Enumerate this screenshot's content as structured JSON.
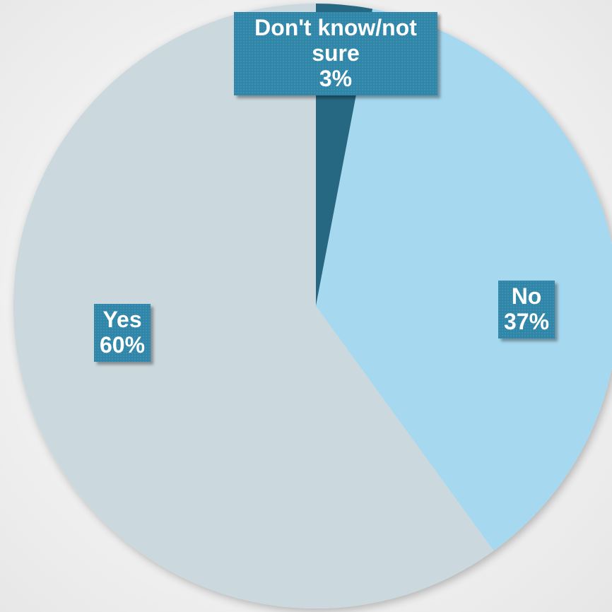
{
  "chart_data": {
    "type": "pie",
    "slices": [
      {
        "label": "Don't know/not sure",
        "value": 3,
        "value_label": "3%",
        "label_lines": [
          "Don't know/not",
          "sure"
        ],
        "color": "#286782"
      },
      {
        "label": "No",
        "value": 37,
        "value_label": "37%",
        "label_lines": [
          "No"
        ],
        "color": "#a6d9f0"
      },
      {
        "label": "Yes",
        "value": 60,
        "value_label": "60%",
        "label_lines": [
          "Yes"
        ],
        "color": "#cbd9df"
      }
    ],
    "label_box_color": "#2f86a8",
    "start": "top",
    "direction": "clockwise",
    "legend": "none"
  }
}
